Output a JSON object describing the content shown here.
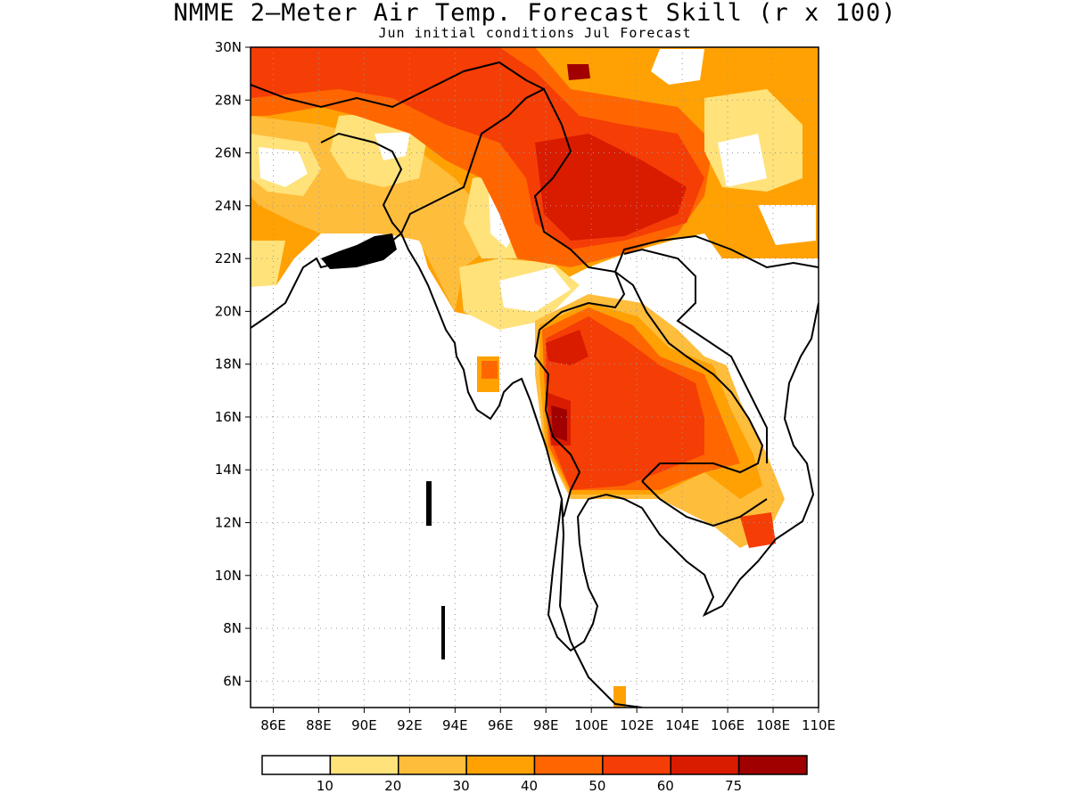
{
  "title": "NMME 2–Meter Air Temp. Forecast Skill (r x 100)",
  "subtitle": "Jun initial conditions  Jul Forecast",
  "map": {
    "lon_range": [
      85,
      110
    ],
    "lat_range": [
      5,
      30
    ],
    "lat_ticks": [
      "30N",
      "28N",
      "26N",
      "24N",
      "22N",
      "20N",
      "18N",
      "16N",
      "14N",
      "12N",
      "10N",
      "8N",
      "6N"
    ],
    "lat_values": [
      30,
      28,
      26,
      24,
      22,
      20,
      18,
      16,
      14,
      12,
      10,
      8,
      6
    ],
    "lon_ticks": [
      "86E",
      "88E",
      "90E",
      "92E",
      "94E",
      "96E",
      "98E",
      "100E",
      "102E",
      "104E",
      "106E",
      "108E",
      "110E"
    ],
    "lon_values": [
      86,
      88,
      90,
      92,
      94,
      96,
      98,
      100,
      102,
      104,
      106,
      108,
      110
    ],
    "grid": "dotted"
  },
  "legend": {
    "labels": [
      "10",
      "20",
      "30",
      "40",
      "50",
      "60",
      "75"
    ],
    "colors": [
      "#ffffff",
      "#ffe27a",
      "#ffbd3c",
      "#ffa103",
      "#ff6600",
      "#f53d06",
      "#d91b00",
      "#a10000"
    ]
  }
}
